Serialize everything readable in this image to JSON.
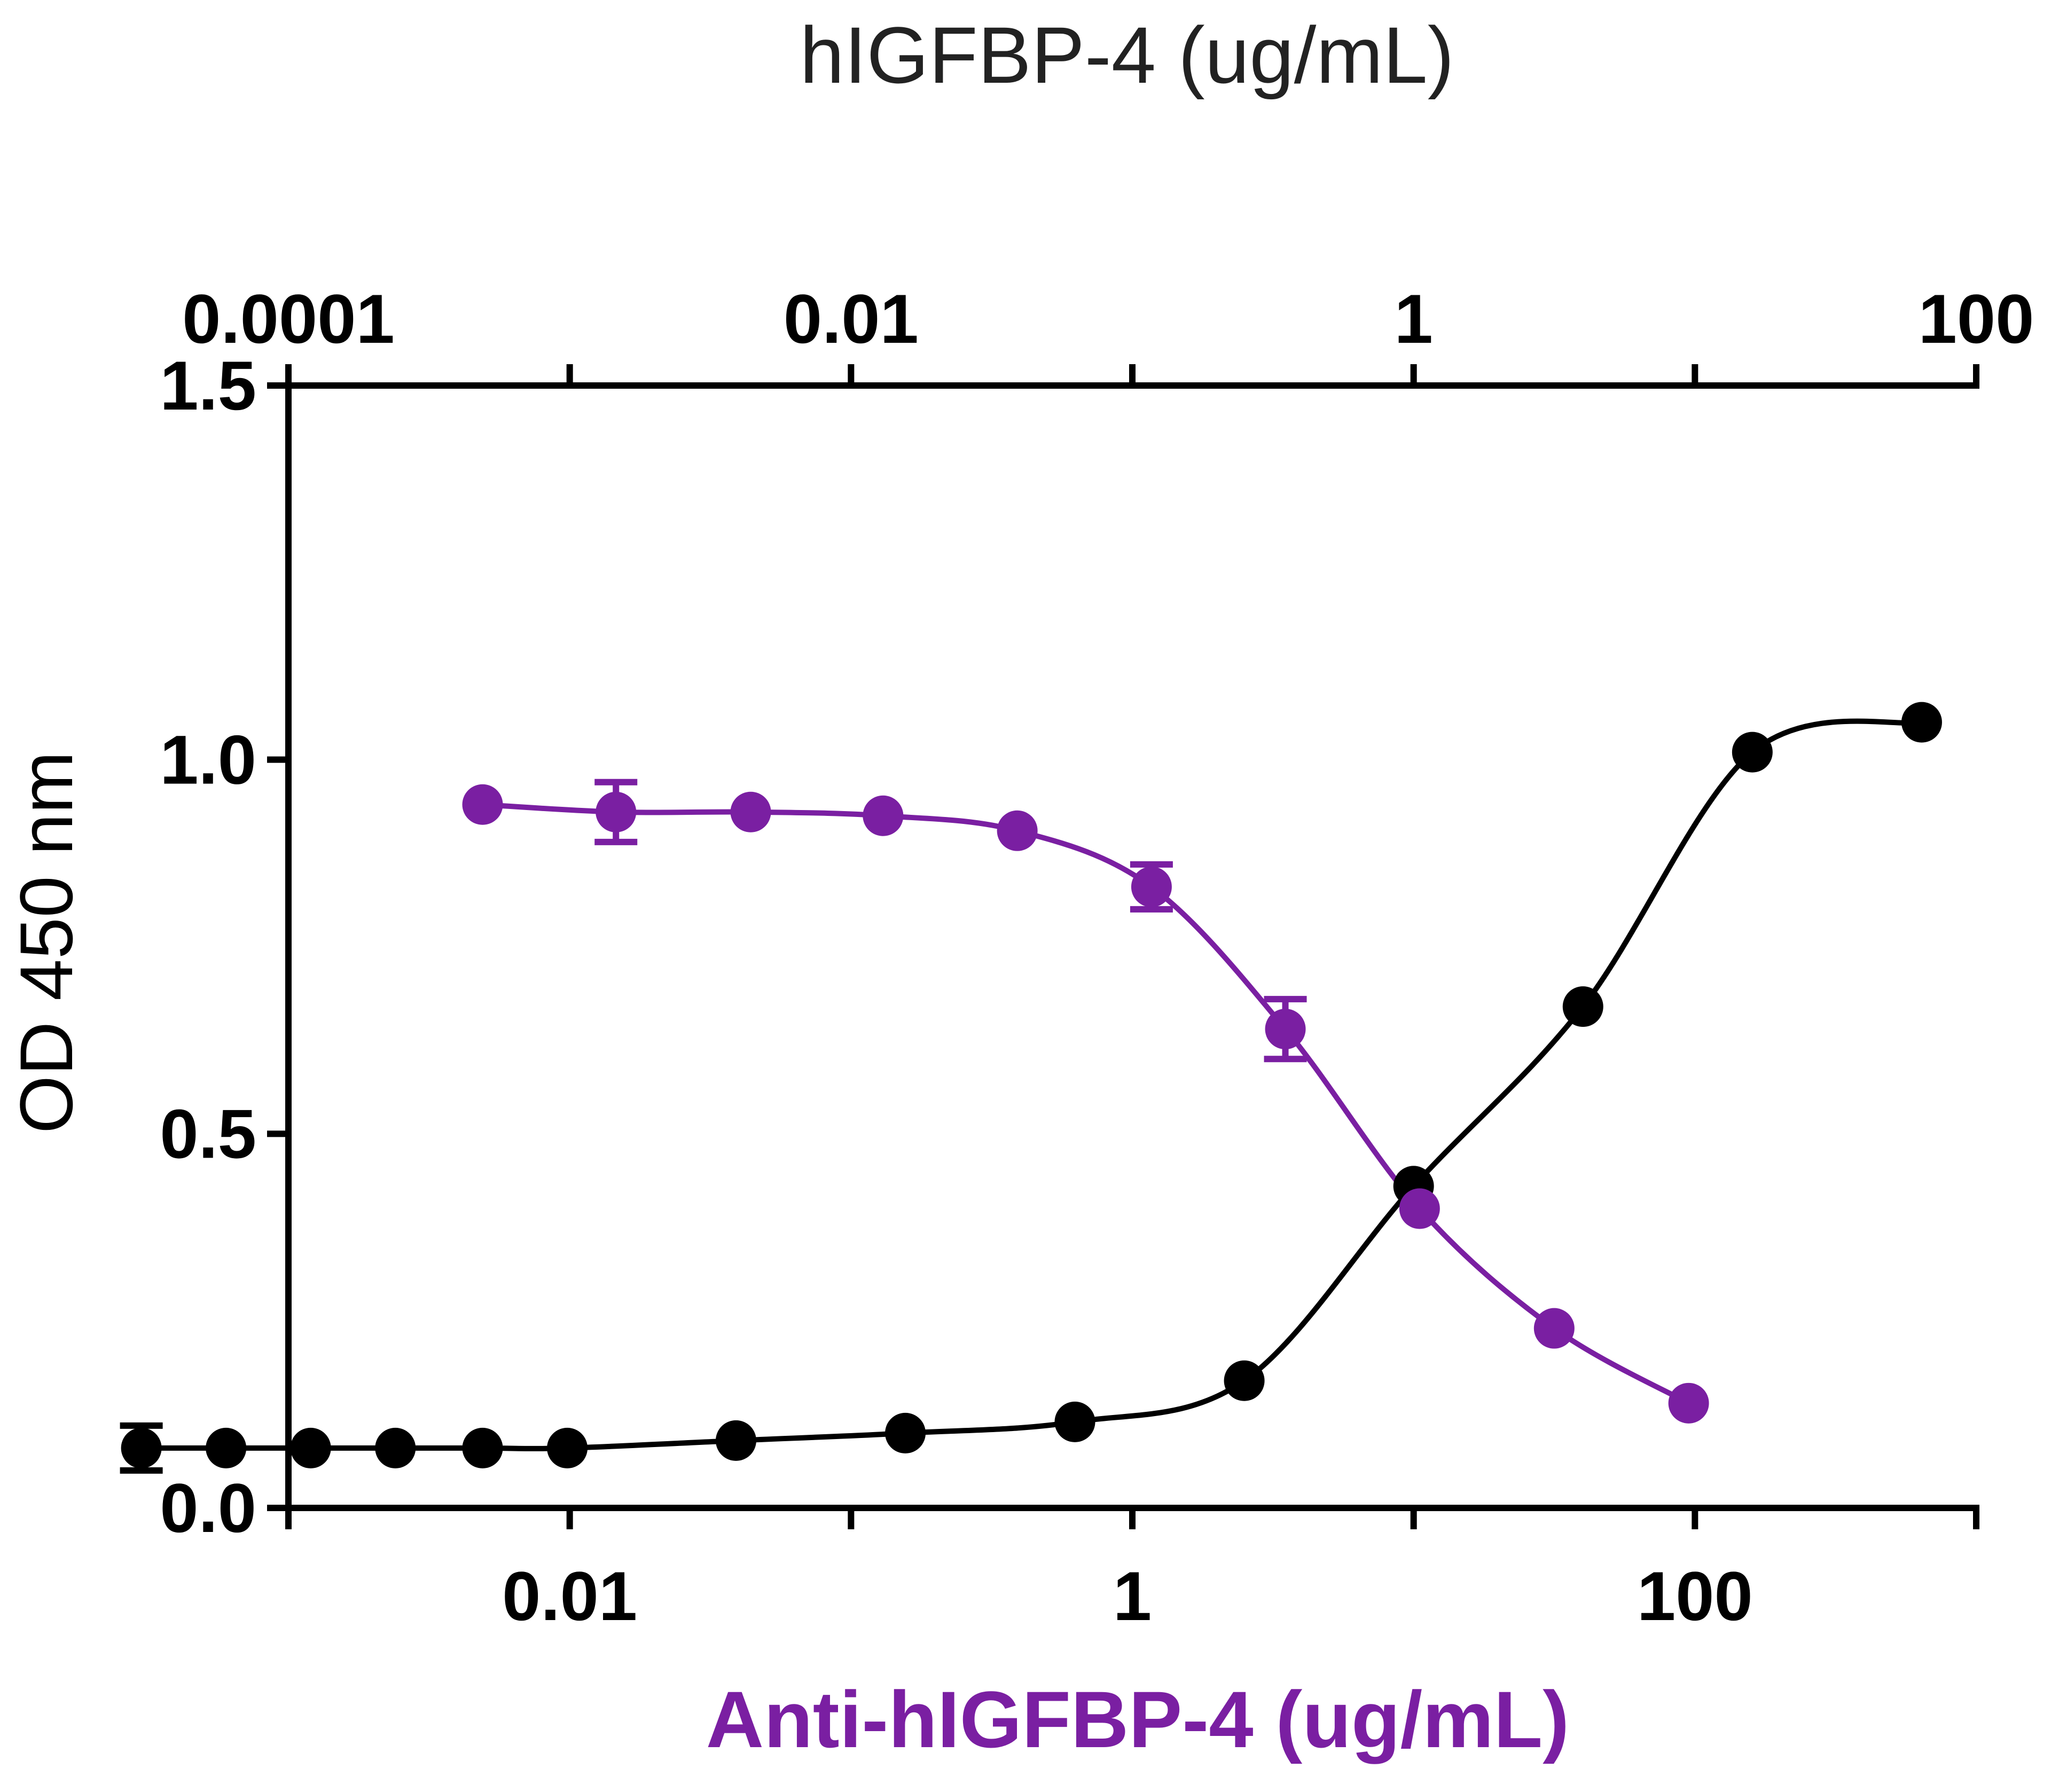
{
  "chart_data": {
    "type": "scatter",
    "title": "hIGFBP-4 (ug/mL)",
    "xlabel": "Anti-hIGFBP-4 (ug/mL)",
    "ylabel": "OD 450 nm",
    "x_scale": "log",
    "y_ticks": [
      "0.0",
      "0.5",
      "1.0",
      "1.5"
    ],
    "y_tick_values": [
      0,
      0.5,
      1.0,
      1.5
    ],
    "ylim": [
      0,
      1.5
    ],
    "top_axis": {
      "label": "hIGFBP-4 (ug/mL)",
      "range": [
        0.0001,
        100
      ],
      "ticks": [
        "0.0001",
        "0.01",
        "1",
        "100"
      ],
      "tick_values": [
        0.0001,
        0.01,
        1,
        100
      ]
    },
    "bottom_axis": {
      "label": "Anti-hIGFBP-4 (ug/mL)",
      "range": [
        0.001,
        1000
      ],
      "ticks": [
        "0.01",
        "1",
        "100"
      ],
      "tick_values": [
        0.01,
        1,
        100
      ]
    },
    "series": [
      {
        "name": "hIGFBP-4",
        "axis": "top",
        "color": "#000000",
        "fit": "sigmoid increasing",
        "x": [
          3e-05,
          6e-05,
          0.00012,
          0.00024,
          0.00049,
          0.00098,
          0.0039,
          0.0156,
          0.0625,
          0.25,
          1.0,
          4.0,
          16.0,
          64.0
        ],
        "y": [
          0.08,
          0.08,
          0.08,
          0.08,
          0.08,
          0.08,
          0.09,
          0.1,
          0.115,
          0.17,
          0.43,
          0.67,
          1.01,
          1.05
        ],
        "err": [
          0.03,
          0,
          0,
          0,
          0,
          0,
          0,
          0,
          0,
          0,
          0,
          0,
          0,
          0
        ]
      },
      {
        "name": "Anti-hIGFBP-4",
        "axis": "bottom",
        "color": "#7a1fa2",
        "fit": "sigmoid decreasing",
        "x": [
          0.0049,
          0.0146,
          0.044,
          0.13,
          0.39,
          1.17,
          3.5,
          10.5,
          31.6,
          95
        ],
        "y": [
          0.94,
          0.93,
          0.93,
          0.925,
          0.905,
          0.83,
          0.64,
          0.4,
          0.24,
          0.14
        ],
        "err": [
          0,
          0.04,
          0,
          0,
          0,
          0.03,
          0.04,
          0,
          0,
          0
        ]
      }
    ]
  }
}
